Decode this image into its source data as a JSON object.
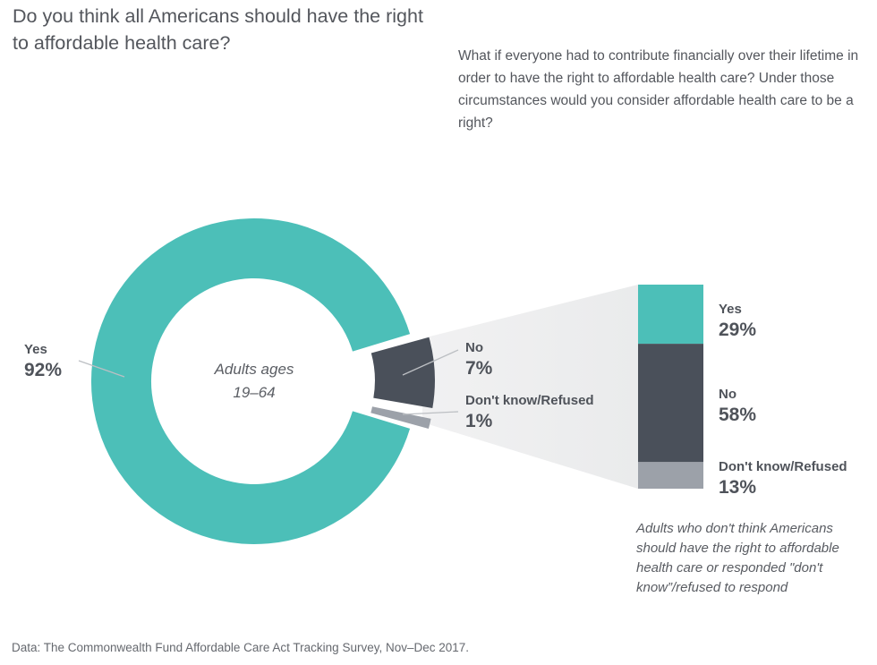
{
  "page": {
    "title": "Do you think all Americans should have the right to affordable health care?",
    "followup_question": "What if everyone had to contribute financially over their lifetime in order to have the right to affordable health care? Under those circumstances would you consider affordable health care to be a right?",
    "footnote": "Data: The Commonwealth Fund Affordable Care Act Tracking Survey, Nov–Dec 2017."
  },
  "colors": {
    "yes": "#4cbfb8",
    "no": "#4a505a",
    "dont_know": "#9ca1a9",
    "funnel_light": "#f1f1f2",
    "funnel_dark": "#eaebec",
    "leader_line": "#bcbfc3",
    "text": "#4f535a"
  },
  "chart_data": [
    {
      "type": "pie",
      "donut": true,
      "title": "Do you think all Americans should have the right to affordable health care?",
      "center_label_line1": "Adults ages",
      "center_label_line2": "19–64",
      "categories": [
        "Yes",
        "No",
        "Don't know/Refused"
      ],
      "values": [
        92,
        7,
        1
      ],
      "exploded_categories": [
        "No",
        "Don't know/Refused"
      ],
      "legend_position": "callouts",
      "segments": [
        {
          "label": "Yes",
          "value": 92,
          "pct": "92%"
        },
        {
          "label": "No",
          "value": 7,
          "pct": "7%"
        },
        {
          "label": "Don't know/Refused",
          "value": 1,
          "pct": "1%"
        }
      ]
    },
    {
      "type": "bar",
      "stacked": true,
      "subset_note": "Adults who don't think Americans should have the right to affordable health care or responded \"don't know”/refused to respond",
      "categories": [
        "Yes",
        "No",
        "Don't know/Refused"
      ],
      "values": [
        29,
        58,
        13
      ],
      "ylim": [
        0,
        100
      ],
      "grid": false,
      "segments": [
        {
          "label": "Yes",
          "value": 29,
          "pct": "29%"
        },
        {
          "label": "No",
          "value": 58,
          "pct": "58%"
        },
        {
          "label": "Don't know/Refused",
          "value": 13,
          "pct": "13%"
        }
      ]
    }
  ]
}
